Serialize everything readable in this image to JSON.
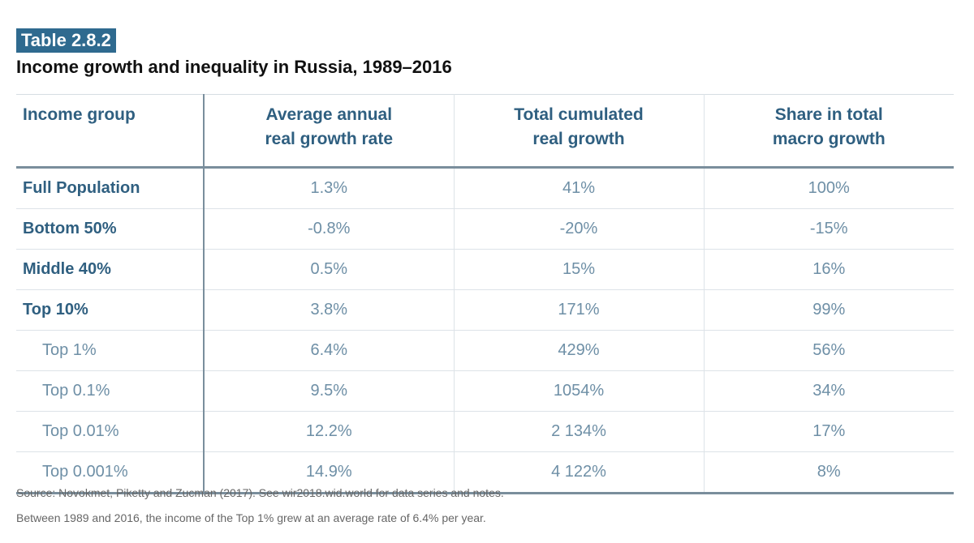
{
  "label": "Table 2.8.2",
  "title": "Income growth and inequality in Russia, 1989–2016",
  "headers": [
    "Income group",
    "Average annual real growth rate",
    "Total cumulated real growth",
    "Share in total macro growth"
  ],
  "rows": [
    {
      "group": "Full Population",
      "annual": "1.3%",
      "cumulated": "41%",
      "share": "100%"
    },
    {
      "group": "Bottom 50%",
      "annual": "-0.8%",
      "cumulated": "-20%",
      "share": "-15%"
    },
    {
      "group": "Middle 40%",
      "annual": "0.5%",
      "cumulated": "15%",
      "share": "16%"
    },
    {
      "group": "Top 10%",
      "annual": "3.8%",
      "cumulated": "171%",
      "share": "99%"
    },
    {
      "group": "Top 1%",
      "annual": "6.4%",
      "cumulated": "429%",
      "share": "56%"
    },
    {
      "group": "Top 0.1%",
      "annual": "9.5%",
      "cumulated": "1054%",
      "share": "34%"
    },
    {
      "group": "Top 0.01%",
      "annual": "12.2%",
      "cumulated": "2 134%",
      "share": "17%"
    },
    {
      "group": "Top 0.001%",
      "annual": "14.9%",
      "cumulated": "4 122%",
      "share": "8%"
    }
  ],
  "source": "Source: Novokmet, Piketty and Zucman (2017). See wir2018.wid.world for data series and notes.",
  "note": "Between 1989 and 2016, the income of the Top 1% grew at an average rate of 6.4% per year.",
  "colors": {
    "accent": "#2f6a8f",
    "header_text": "#2f5f80",
    "body_text": "#6e8fa6"
  }
}
